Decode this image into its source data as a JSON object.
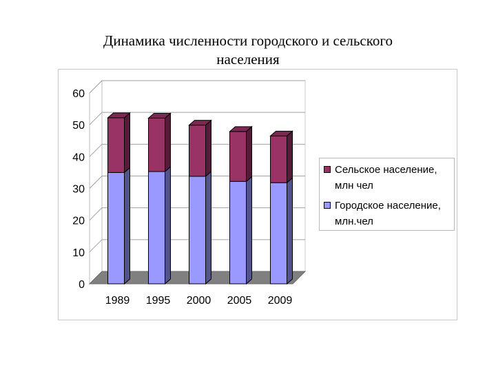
{
  "chart_data": {
    "type": "bar",
    "stacked": true,
    "three_d": true,
    "title": "Динамика численности городского и сельского населения",
    "title_lines": [
      "Динамика численности городского и сельского",
      "населения"
    ],
    "categories": [
      "1989",
      "1995",
      "2000",
      "2005",
      "2009"
    ],
    "series": [
      {
        "name": "Городское население, млн.чел",
        "name_lines": [
          "Городское население,",
          "млн.чел"
        ],
        "values": [
          35.0,
          35.3,
          33.8,
          32.2,
          31.8
        ],
        "color": "#9999ff"
      },
      {
        "name": "Сельское население, млн чел",
        "name_lines": [
          "Сельское население,",
          "млн чел"
        ],
        "values": [
          17.2,
          16.8,
          16.1,
          15.7,
          14.7
        ],
        "color": "#993366"
      }
    ],
    "ylim": [
      0,
      60
    ],
    "yticks": [
      "0",
      "10",
      "20",
      "30",
      "40",
      "50",
      "60"
    ],
    "grid": true,
    "legend_position": "right",
    "floor_color": "#808080"
  }
}
